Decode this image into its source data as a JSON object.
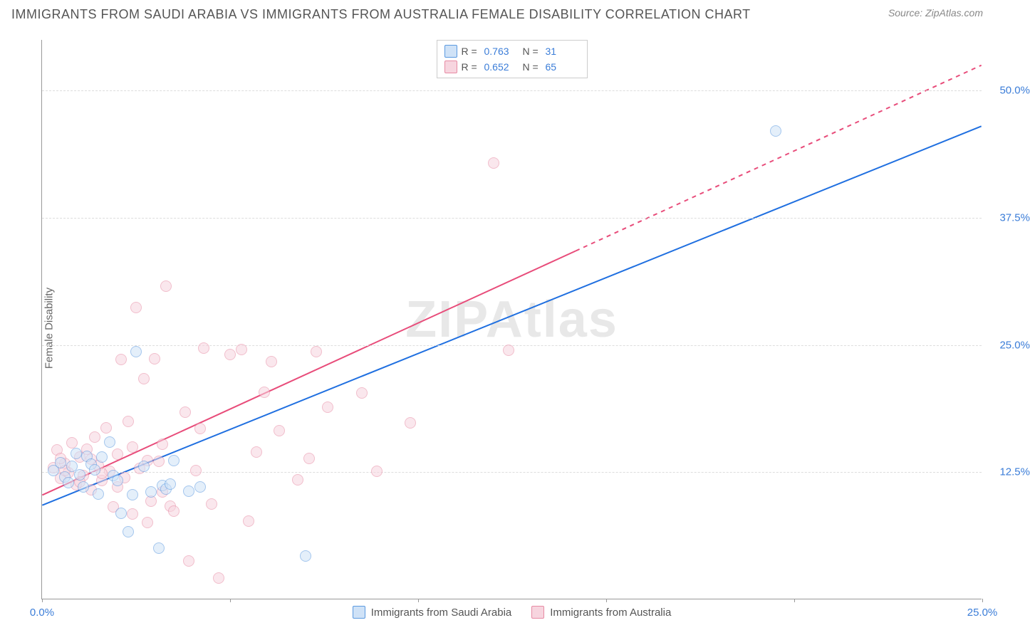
{
  "header": {
    "title": "IMMIGRANTS FROM SAUDI ARABIA VS IMMIGRANTS FROM AUSTRALIA FEMALE DISABILITY CORRELATION CHART",
    "source": "Source: ZipAtlas.com"
  },
  "chart": {
    "type": "scatter",
    "ylabel": "Female Disability",
    "watermark": "ZIPAtlas",
    "background_color": "#ffffff",
    "grid_color": "#dddddd",
    "axis_color": "#999999",
    "xlim": [
      0,
      25
    ],
    "ylim": [
      0,
      55
    ],
    "x_ticks": [
      0,
      5,
      10,
      15,
      20,
      25
    ],
    "x_tick_labels": {
      "0": "0.0%",
      "25": "25.0%"
    },
    "x_tick_color": "#3b7dd8",
    "y_ticks": [
      12.5,
      25.0,
      37.5,
      50.0
    ],
    "y_tick_labels": [
      "12.5%",
      "25.0%",
      "37.5%",
      "50.0%"
    ],
    "y_tick_color": "#3b7dd8",
    "marker_radius": 8,
    "marker_border_width": 1.5,
    "series": [
      {
        "id": "saudi",
        "label": "Immigrants from Saudi Arabia",
        "fill": "#cfe2f7",
        "stroke": "#5a99e0",
        "fill_opacity": 0.55,
        "r_value": "0.763",
        "n_value": "31",
        "trend": {
          "x1": 0,
          "y1": 9.2,
          "x2": 25,
          "y2": 46.5,
          "solid_until_x": 25,
          "stroke": "#1f6fe0",
          "width": 2
        },
        "points": [
          [
            0.3,
            12.6
          ],
          [
            0.5,
            13.4
          ],
          [
            0.6,
            12.0
          ],
          [
            0.7,
            11.4
          ],
          [
            0.8,
            13.0
          ],
          [
            0.9,
            14.3
          ],
          [
            1.0,
            12.2
          ],
          [
            1.1,
            11.0
          ],
          [
            1.2,
            14.0
          ],
          [
            1.3,
            13.2
          ],
          [
            1.4,
            12.7
          ],
          [
            1.5,
            10.3
          ],
          [
            1.6,
            13.9
          ],
          [
            1.8,
            15.4
          ],
          [
            1.9,
            12.1
          ],
          [
            2.0,
            11.6
          ],
          [
            2.1,
            8.4
          ],
          [
            2.3,
            6.6
          ],
          [
            2.4,
            10.2
          ],
          [
            2.5,
            24.3
          ],
          [
            2.7,
            13.0
          ],
          [
            2.9,
            10.5
          ],
          [
            3.1,
            5.0
          ],
          [
            3.2,
            11.1
          ],
          [
            3.3,
            10.8
          ],
          [
            3.4,
            11.3
          ],
          [
            3.5,
            13.6
          ],
          [
            3.9,
            10.6
          ],
          [
            4.2,
            11.0
          ],
          [
            7.0,
            4.2
          ],
          [
            19.5,
            46.0
          ]
        ]
      },
      {
        "id": "australia",
        "label": "Immigrants from Australia",
        "fill": "#f7d5df",
        "stroke": "#e78aa3",
        "fill_opacity": 0.55,
        "r_value": "0.652",
        "n_value": "65",
        "trend": {
          "x1": 0,
          "y1": 10.2,
          "x2": 25,
          "y2": 52.5,
          "solid_until_x": 14.2,
          "stroke": "#e84c7a",
          "width": 2
        },
        "points": [
          [
            0.3,
            12.9
          ],
          [
            0.4,
            14.6
          ],
          [
            0.5,
            11.8
          ],
          [
            0.6,
            13.3
          ],
          [
            0.7,
            12.4
          ],
          [
            0.8,
            15.3
          ],
          [
            0.9,
            11.2
          ],
          [
            1.0,
            13.9
          ],
          [
            1.1,
            12.1
          ],
          [
            1.2,
            14.7
          ],
          [
            1.3,
            10.7
          ],
          [
            1.4,
            15.9
          ],
          [
            1.5,
            13.1
          ],
          [
            1.6,
            11.6
          ],
          [
            1.7,
            16.8
          ],
          [
            1.8,
            12.5
          ],
          [
            1.9,
            9.0
          ],
          [
            2.0,
            14.2
          ],
          [
            2.1,
            23.5
          ],
          [
            2.2,
            11.9
          ],
          [
            2.3,
            17.4
          ],
          [
            2.4,
            8.3
          ],
          [
            2.5,
            28.6
          ],
          [
            2.6,
            12.8
          ],
          [
            2.7,
            21.6
          ],
          [
            2.8,
            7.5
          ],
          [
            2.9,
            9.6
          ],
          [
            3.0,
            23.6
          ],
          [
            3.1,
            13.5
          ],
          [
            3.2,
            15.2
          ],
          [
            3.3,
            30.7
          ],
          [
            3.4,
            9.1
          ],
          [
            3.5,
            8.6
          ],
          [
            3.8,
            18.3
          ],
          [
            3.9,
            3.7
          ],
          [
            4.1,
            12.6
          ],
          [
            4.2,
            16.7
          ],
          [
            4.3,
            24.6
          ],
          [
            4.5,
            9.3
          ],
          [
            4.7,
            2.0
          ],
          [
            5.0,
            24.0
          ],
          [
            5.3,
            24.5
          ],
          [
            5.5,
            7.6
          ],
          [
            5.7,
            14.4
          ],
          [
            5.9,
            20.3
          ],
          [
            6.1,
            23.3
          ],
          [
            6.3,
            16.5
          ],
          [
            6.8,
            11.7
          ],
          [
            7.1,
            13.8
          ],
          [
            7.3,
            24.3
          ],
          [
            7.6,
            18.8
          ],
          [
            8.5,
            20.2
          ],
          [
            8.9,
            12.5
          ],
          [
            9.8,
            17.3
          ],
          [
            12.0,
            42.8
          ],
          [
            12.4,
            24.4
          ],
          [
            0.5,
            13.8
          ],
          [
            0.6,
            12.6
          ],
          [
            1.0,
            11.5
          ],
          [
            1.3,
            13.7
          ],
          [
            1.6,
            12.3
          ],
          [
            2.0,
            11.0
          ],
          [
            2.4,
            14.9
          ],
          [
            2.8,
            13.6
          ],
          [
            3.2,
            10.5
          ]
        ]
      }
    ],
    "legend_rn": {
      "r_label": "R =",
      "n_label": "N =",
      "value_color": "#3b7dd8",
      "label_color": "#555555"
    }
  }
}
